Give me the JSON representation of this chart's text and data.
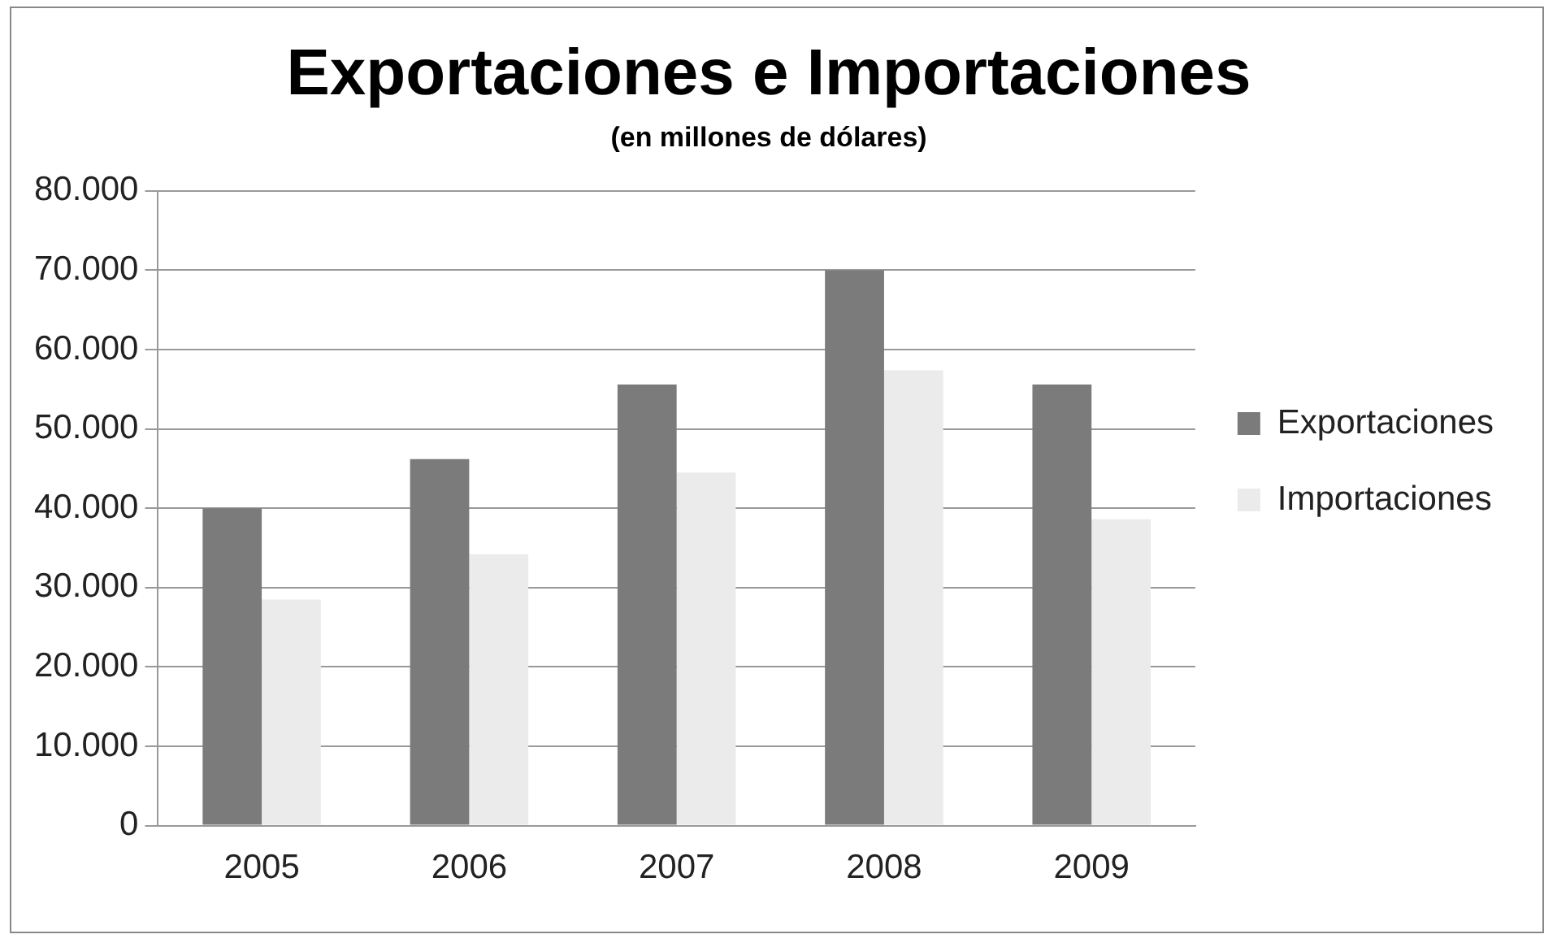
{
  "chart_data": {
    "type": "bar",
    "title": "Exportaciones e Importaciones",
    "subtitle": "(en millones de dólares)",
    "categories": [
      "2005",
      "2006",
      "2007",
      "2008",
      "2009"
    ],
    "series": [
      {
        "name": "Exportaciones",
        "color": "#7b7b7b",
        "values": [
          40000,
          46200,
          55600,
          70000,
          55600
        ]
      },
      {
        "name": "Importaciones",
        "color": "#ebebeb",
        "values": [
          28500,
          34200,
          44500,
          57400,
          38600
        ]
      }
    ],
    "ylim": [
      0,
      80000
    ],
    "yticks": [
      {
        "value": 0,
        "label": "0"
      },
      {
        "value": 10000,
        "label": "10.000"
      },
      {
        "value": 20000,
        "label": "20.000"
      },
      {
        "value": 30000,
        "label": "30.000"
      },
      {
        "value": 40000,
        "label": "40.000"
      },
      {
        "value": 50000,
        "label": "50.000"
      },
      {
        "value": 60000,
        "label": "60.000"
      },
      {
        "value": 70000,
        "label": "70.000"
      },
      {
        "value": 80000,
        "label": "80.000"
      }
    ],
    "grid": "y",
    "legend": "right"
  }
}
